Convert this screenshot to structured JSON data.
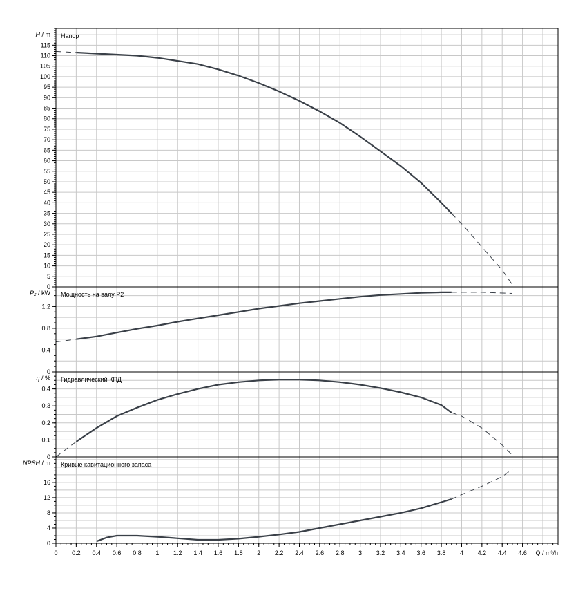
{
  "chart_data": [
    {
      "type": "line",
      "title": "Напор",
      "ylabel_symbol": "H",
      "ylabel_unit": " / m",
      "ylim": [
        0,
        123
      ],
      "yticks": [
        0,
        5,
        10,
        15,
        20,
        25,
        30,
        35,
        40,
        45,
        50,
        55,
        60,
        65,
        70,
        75,
        80,
        85,
        90,
        95,
        100,
        105,
        110,
        115
      ],
      "ygrid_step": 5,
      "yminor_step": 1,
      "grid": true,
      "solid_range": [
        0.2,
        3.9
      ],
      "color": "#3a4048",
      "x": [
        0,
        0.2,
        0.4,
        0.6,
        0.8,
        1,
        1.2,
        1.4,
        1.6,
        1.8,
        2,
        2.2,
        2.4,
        2.6,
        2.8,
        3,
        3.2,
        3.4,
        3.6,
        3.8,
        3.9,
        4.0,
        4.2,
        4.4,
        4.5
      ],
      "y": [
        112,
        111.5,
        111,
        110.5,
        110,
        109,
        107.5,
        106,
        103.5,
        100.5,
        97,
        93,
        88.5,
        83.5,
        78,
        71.5,
        64.5,
        57.5,
        49.5,
        40,
        35,
        30,
        19,
        8,
        1
      ]
    },
    {
      "type": "line",
      "title": "Мощность на валу P2",
      "ylabel_symbol": "P₂",
      "ylabel_unit": " / kW",
      "ylim": [
        0,
        1.56
      ],
      "yticks": [
        0,
        0.4,
        0.8,
        1.2
      ],
      "ygrid_step": 0.2,
      "yminor_step": 0.1,
      "grid": true,
      "solid_range": [
        0.2,
        3.9
      ],
      "color": "#3a4048",
      "x": [
        0,
        0.2,
        0.4,
        0.6,
        0.8,
        1,
        1.2,
        1.4,
        1.6,
        1.8,
        2,
        2.2,
        2.4,
        2.6,
        2.8,
        3,
        3.2,
        3.4,
        3.6,
        3.8,
        3.9,
        4.2,
        4.5
      ],
      "y": [
        0.55,
        0.6,
        0.65,
        0.72,
        0.79,
        0.85,
        0.92,
        0.98,
        1.04,
        1.1,
        1.16,
        1.21,
        1.26,
        1.3,
        1.34,
        1.38,
        1.41,
        1.43,
        1.45,
        1.46,
        1.46,
        1.46,
        1.44
      ]
    },
    {
      "type": "line",
      "title": "Гидравлический КПД",
      "ylabel_symbol": "η",
      "ylabel_unit": " / %",
      "ylim": [
        0,
        0.5
      ],
      "yticks": [
        0,
        0.1,
        0.2,
        0.3,
        0.4
      ],
      "ygrid_step": 0.05,
      "yminor_step": 0.025,
      "grid": true,
      "solid_range": [
        0.2,
        3.9
      ],
      "color": "#3a4048",
      "x": [
        0,
        0.2,
        0.4,
        0.6,
        0.8,
        1,
        1.2,
        1.4,
        1.6,
        1.8,
        2,
        2.2,
        2.4,
        2.6,
        2.8,
        3,
        3.2,
        3.4,
        3.6,
        3.8,
        3.9,
        4.0,
        4.2,
        4.4,
        4.5
      ],
      "y": [
        0,
        0.09,
        0.17,
        0.24,
        0.29,
        0.335,
        0.37,
        0.4,
        0.425,
        0.44,
        0.45,
        0.455,
        0.455,
        0.45,
        0.44,
        0.425,
        0.405,
        0.38,
        0.35,
        0.305,
        0.26,
        0.24,
        0.17,
        0.07,
        0.01
      ]
    },
    {
      "type": "line",
      "title": "Кривые кавитационного запаса",
      "ylabel_symbol": "NPSH",
      "ylabel_unit": " / m",
      "ylim": [
        0,
        22.7
      ],
      "yticks": [
        0,
        4,
        8,
        12,
        16
      ],
      "ygrid_step": 2,
      "yminor_step": 1,
      "grid": true,
      "solid_range": [
        0.4,
        3.9
      ],
      "color": "#3a4048",
      "x": [
        0.4,
        0.5,
        0.6,
        0.8,
        1,
        1.2,
        1.4,
        1.6,
        1.8,
        2,
        2.2,
        2.4,
        2.6,
        2.8,
        3,
        3.2,
        3.4,
        3.6,
        3.8,
        3.9,
        4.0,
        4.2,
        4.4,
        4.5
      ],
      "y": [
        0.5,
        1.5,
        2,
        2,
        1.7,
        1.3,
        0.9,
        0.9,
        1.2,
        1.7,
        2.3,
        3,
        4,
        5,
        6,
        7,
        8,
        9.2,
        10.8,
        11.6,
        12.8,
        15,
        17.5,
        19.5
      ]
    }
  ],
  "x_axis": {
    "label": "Q / m³/h",
    "xlim": [
      0,
      4.95
    ],
    "xticks": [
      0,
      0.2,
      0.4,
      0.6,
      0.8,
      1,
      1.2,
      1.4,
      1.6,
      1.8,
      2,
      2.2,
      2.4,
      2.6,
      2.8,
      3,
      3.2,
      3.4,
      3.6,
      3.8,
      4,
      4.2,
      4.4,
      4.6
    ],
    "grid_step": 0.2,
    "minor_step": 0.05
  }
}
